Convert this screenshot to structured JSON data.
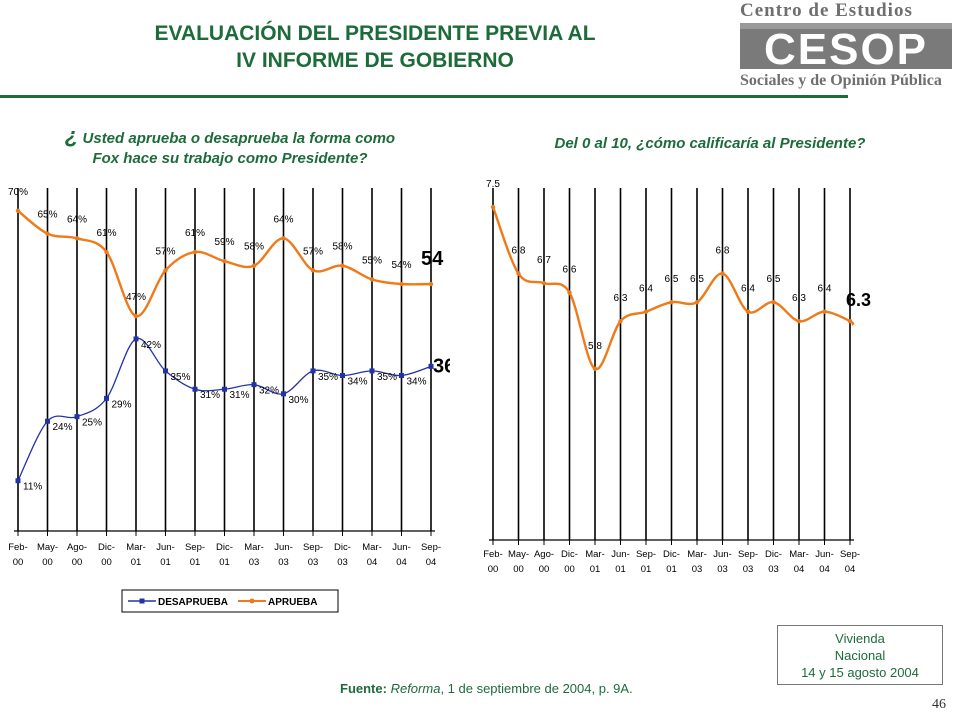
{
  "header": {
    "title_line1": "EVALUACIÓN DEL PRESIDENTE PREVIA AL",
    "title_line2": "IV INFORME DE GOBIERNO",
    "logo_top": "Centro de Estudios",
    "logo_mark": "CESOP",
    "logo_bottom": "Sociales y de Opinión Pública"
  },
  "questions": {
    "q1_mark": "¿",
    "q1_line1": "Usted aprueba o desaprueba la forma como",
    "q1_line2": "Fox hace su trabajo como Presidente?",
    "q2": "Del 0 al 10, ¿cómo calificaría al Presidente?"
  },
  "footer": {
    "source_label": "Fuente:",
    "source_pub": "Reforma",
    "source_rest": ", 1 de septiembre de 2004, p. 9A.",
    "note_line1": "Vivienda",
    "note_line2": "Nacional",
    "note_line3": "14 y 15 agosto 2004",
    "page_number": "46"
  },
  "colors": {
    "green": "#1e6b3a",
    "desaprueba": "#2233aa",
    "aprueba": "#ee7a1a",
    "calificacion": "#ee7a1a"
  },
  "chart_data": [
    {
      "type": "line",
      "categories": [
        "Feb-00",
        "May-00",
        "Ago-00",
        "Dic-00",
        "Mar-01",
        "Jun-01",
        "Sep-01",
        "Dic-01",
        "Mar-03",
        "Jun-03",
        "Sep-03",
        "Dic-03",
        "Mar-04",
        "Jun-04",
        "Sep-04"
      ],
      "tick_labels": [
        [
          "Feb-",
          "00"
        ],
        [
          "May-",
          "00"
        ],
        [
          "Ago-",
          "00"
        ],
        [
          "Dic-",
          "00"
        ],
        [
          "Mar-",
          "01"
        ],
        [
          "Jun-",
          "01"
        ],
        [
          "Sep-",
          "01"
        ],
        [
          "Dic-",
          "01"
        ],
        [
          "Mar-",
          "03"
        ],
        [
          "Jun-",
          "03"
        ],
        [
          "Sep-",
          "03"
        ],
        [
          "Dic-",
          "03"
        ],
        [
          "Mar-",
          "04"
        ],
        [
          "Jun-",
          "04"
        ],
        [
          "Sep-",
          "04"
        ]
      ],
      "series": [
        {
          "name": "DESAPRUEBA",
          "color": "#2233aa",
          "marker": "square",
          "values": [
            11,
            24,
            25,
            29,
            42,
            35,
            31,
            31,
            32,
            30,
            35,
            34,
            35,
            34,
            36
          ],
          "labels": [
            "11%",
            "24%",
            "25%",
            "29%",
            "42%",
            "35%",
            "31%",
            "31%",
            "32%",
            "30%",
            "35%",
            "34%",
            "35%",
            "34%",
            "36"
          ]
        },
        {
          "name": "APRUEBA",
          "color": "#ee7a1a",
          "marker": "circle",
          "values": [
            70,
            65,
            64,
            61,
            47,
            57,
            61,
            59,
            58,
            64,
            57,
            58,
            55,
            54,
            54
          ],
          "labels": [
            "70%",
            "65%",
            "64%",
            "61%",
            "47%",
            "57%",
            "61%",
            "59%",
            "58%",
            "64%",
            "57%",
            "58%",
            "55%",
            "54%",
            "54"
          ]
        }
      ],
      "ylim": [
        0,
        75
      ],
      "grid": "vertical",
      "legend": "bottom"
    },
    {
      "type": "line",
      "categories": [
        "Feb-00",
        "May-00",
        "Ago-00",
        "Dic-00",
        "Mar-01",
        "Jun-01",
        "Sep-01",
        "Dic-01",
        "Mar-03",
        "Jun-03",
        "Sep-03",
        "Dic-03",
        "Mar-04",
        "Jun-04",
        "Sep-04"
      ],
      "tick_labels": [
        [
          "Feb-",
          "00"
        ],
        [
          "May-",
          "00"
        ],
        [
          "Ago-",
          "00"
        ],
        [
          "Dic-",
          "00"
        ],
        [
          "Mar-",
          "01"
        ],
        [
          "Jun-",
          "01"
        ],
        [
          "Sep-",
          "01"
        ],
        [
          "Dic-",
          "01"
        ],
        [
          "Mar-",
          "03"
        ],
        [
          "Jun-",
          "03"
        ],
        [
          "Sep-",
          "03"
        ],
        [
          "Dic-",
          "03"
        ],
        [
          "Mar-",
          "04"
        ],
        [
          "Jun-",
          "04"
        ],
        [
          "Sep-",
          "04"
        ]
      ],
      "series": [
        {
          "color": "#ee7a1a",
          "marker": "circle",
          "values": [
            7.5,
            6.8,
            6.7,
            6.6,
            5.8,
            6.3,
            6.4,
            6.5,
            6.5,
            6.8,
            6.4,
            6.5,
            6.3,
            6.4,
            6.3
          ],
          "labels": [
            "7.5",
            "6.8",
            "6.7",
            "6.6",
            "5.8",
            "6.3",
            "6.4",
            "6.5",
            "6.5",
            "6.8",
            "6.4",
            "6.5",
            "6.3",
            "6.4",
            "6.3"
          ]
        }
      ],
      "ylim": [
        4,
        7.7
      ],
      "grid": "vertical"
    }
  ]
}
